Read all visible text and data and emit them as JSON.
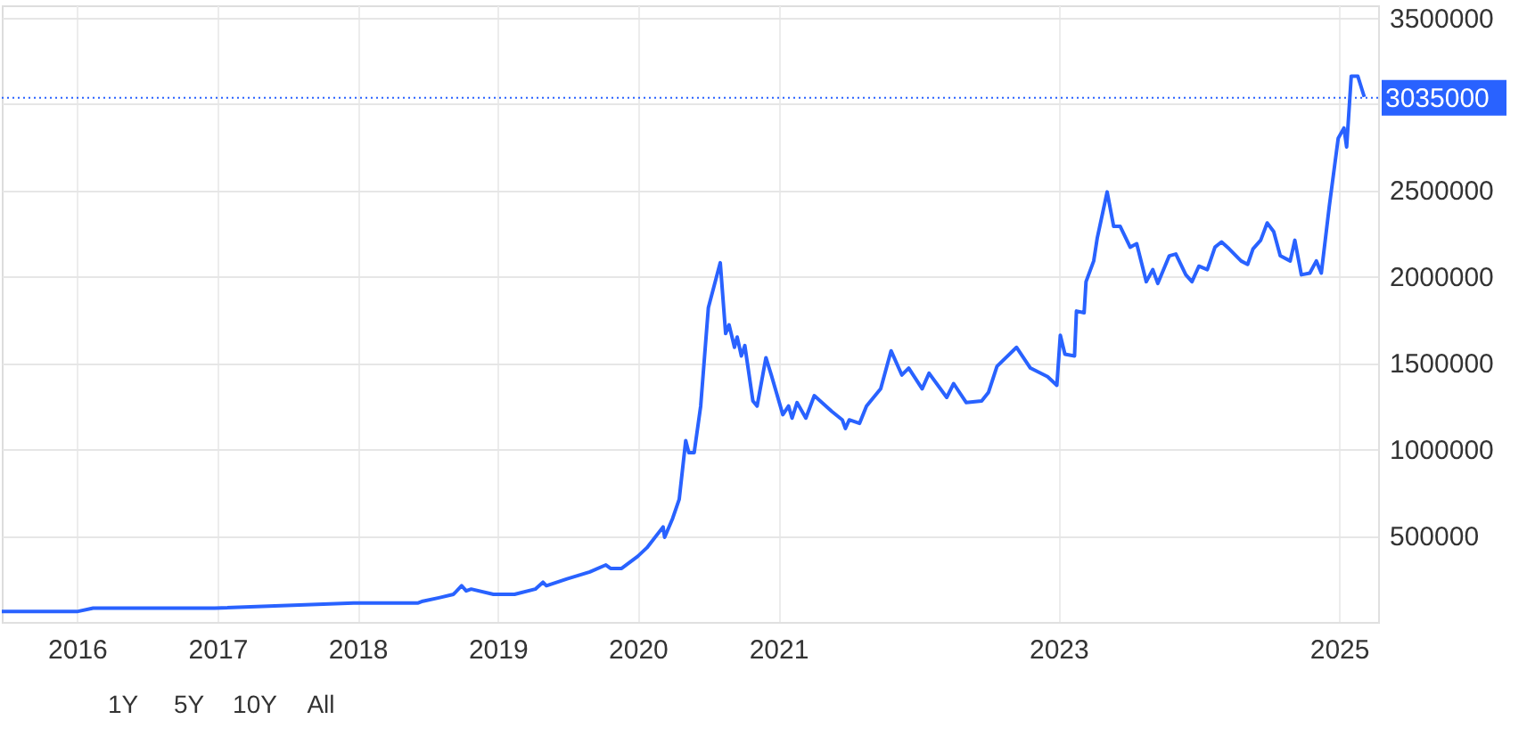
{
  "chart_data": {
    "type": "line",
    "series": [
      {
        "color": "#2962ff",
        "x": [
          "2015-06-19",
          "2015-09-10",
          "2016-01-01",
          "2016-02-12",
          "2016-12-25",
          "2017-12-22",
          "2018-06-08",
          "2018-06-20",
          "2018-08-01",
          "2018-09-08",
          "2018-09-29",
          "2018-10-11",
          "2018-10-24",
          "2018-12-21",
          "2019-02-14",
          "2019-04-09",
          "2019-04-29",
          "2019-05-08",
          "2019-07-01",
          "2019-08-29",
          "2019-10-10",
          "2019-10-22",
          "2019-11-20",
          "2020-01-01",
          "2020-01-25",
          "2020-03-07",
          "2020-03-11",
          "2020-04-01",
          "2020-04-18",
          "2020-05-05",
          "2020-05-13",
          "2020-05-27",
          "2020-06-13",
          "2020-07-03",
          "2020-08-03",
          "2020-08-17",
          "2020-08-26",
          "2020-09-09",
          "2020-09-16",
          "2020-09-27",
          "2020-10-06",
          "2020-10-27",
          "2020-11-07",
          "2020-11-30",
          "2020-12-14",
          "2021-01-13",
          "2021-01-28",
          "2021-02-06",
          "2021-02-19",
          "2021-03-14",
          "2021-04-05",
          "2021-05-20",
          "2021-06-17",
          "2021-06-25",
          "2021-07-05",
          "2021-08-01",
          "2021-08-19",
          "2021-09-25",
          "2021-10-22",
          "2021-11-19",
          "2021-12-07",
          "2022-01-11",
          "2022-01-29",
          "2022-03-16",
          "2022-04-03",
          "2022-05-06",
          "2022-06-15",
          "2022-07-03",
          "2022-07-25",
          "2022-09-14",
          "2022-10-20",
          "2022-12-04",
          "2022-12-28",
          "2023-01-06",
          "2023-01-18",
          "2023-02-12",
          "2023-02-17",
          "2023-03-09",
          "2023-03-14",
          "2023-04-03",
          "2023-04-12",
          "2023-05-08",
          "2023-05-25",
          "2023-06-11",
          "2023-07-07",
          "2023-07-24",
          "2023-08-18",
          "2023-09-04",
          "2023-09-17",
          "2023-10-17",
          "2023-11-03",
          "2023-11-29",
          "2023-12-15",
          "2024-01-02",
          "2024-01-24",
          "2024-02-13",
          "2024-03-01",
          "2024-03-21",
          "2024-04-21",
          "2024-05-08",
          "2024-05-22",
          "2024-06-11",
          "2024-06-28",
          "2024-07-15",
          "2024-08-01",
          "2024-08-27",
          "2024-09-08",
          "2024-09-25",
          "2024-10-17",
          "2024-11-03",
          "2024-11-16",
          "2024-12-07",
          "2024-12-30",
          "2025-01-14",
          "2025-01-21",
          "2025-02-02",
          "2025-02-19",
          "2025-03-08"
        ],
        "values": [
          60000,
          60000,
          60000,
          80000,
          80000,
          110000,
          110000,
          120000,
          140000,
          160000,
          210000,
          180000,
          190000,
          160000,
          160000,
          190000,
          230000,
          210000,
          250000,
          290000,
          330000,
          310000,
          310000,
          380000,
          430000,
          550000,
          490000,
          600000,
          710000,
          1050000,
          980000,
          980000,
          1250000,
          1820000,
          2080000,
          1670000,
          1720000,
          1590000,
          1650000,
          1540000,
          1600000,
          1280000,
          1250000,
          1530000,
          1430000,
          1200000,
          1250000,
          1180000,
          1270000,
          1180000,
          1310000,
          1220000,
          1170000,
          1120000,
          1170000,
          1150000,
          1250000,
          1350000,
          1570000,
          1430000,
          1470000,
          1350000,
          1440000,
          1300000,
          1380000,
          1270000,
          1280000,
          1330000,
          1480000,
          1590000,
          1470000,
          1420000,
          1370000,
          1660000,
          1550000,
          1540000,
          1800000,
          1790000,
          1970000,
          2090000,
          2220000,
          2490000,
          2290000,
          2290000,
          2170000,
          2190000,
          1970000,
          2040000,
          1960000,
          2120000,
          2130000,
          2010000,
          1970000,
          2060000,
          2040000,
          2170000,
          2200000,
          2160000,
          2090000,
          2070000,
          2160000,
          2210000,
          2310000,
          2260000,
          2120000,
          2090000,
          2210000,
          2010000,
          2020000,
          2090000,
          2020000,
          2410000,
          2800000,
          2860000,
          2750000,
          3160000,
          3160000,
          3040000
        ]
      }
    ],
    "xlim": [
      "2015-06-19",
      "2025-04-13"
    ],
    "xticks": [
      {
        "value": "2016-01-01",
        "label": "2016"
      },
      {
        "value": "2017-01-01",
        "label": "2017"
      },
      {
        "value": "2018-01-01",
        "label": "2018"
      },
      {
        "value": "2019-01-01",
        "label": "2019"
      },
      {
        "value": "2020-01-01",
        "label": "2020"
      },
      {
        "value": "2021-01-01",
        "label": "2021"
      },
      {
        "value": "2023-01-01",
        "label": "2023"
      },
      {
        "value": "2025-01-01",
        "label": "2025"
      }
    ],
    "ylim": [
      0,
      3570000
    ],
    "yticks": [
      500000,
      1000000,
      1500000,
      2000000,
      2500000,
      {
        "value": 3000000,
        "label": null
      },
      3500000
    ],
    "grid": true,
    "ref_lines": [
      {
        "axis": "y",
        "value": 3035000,
        "label": "3035000",
        "color": "#2962ff",
        "line_style": "dotted"
      }
    ],
    "annotations": [
      "1Y",
      "5Y",
      "10Y",
      "All"
    ]
  }
}
